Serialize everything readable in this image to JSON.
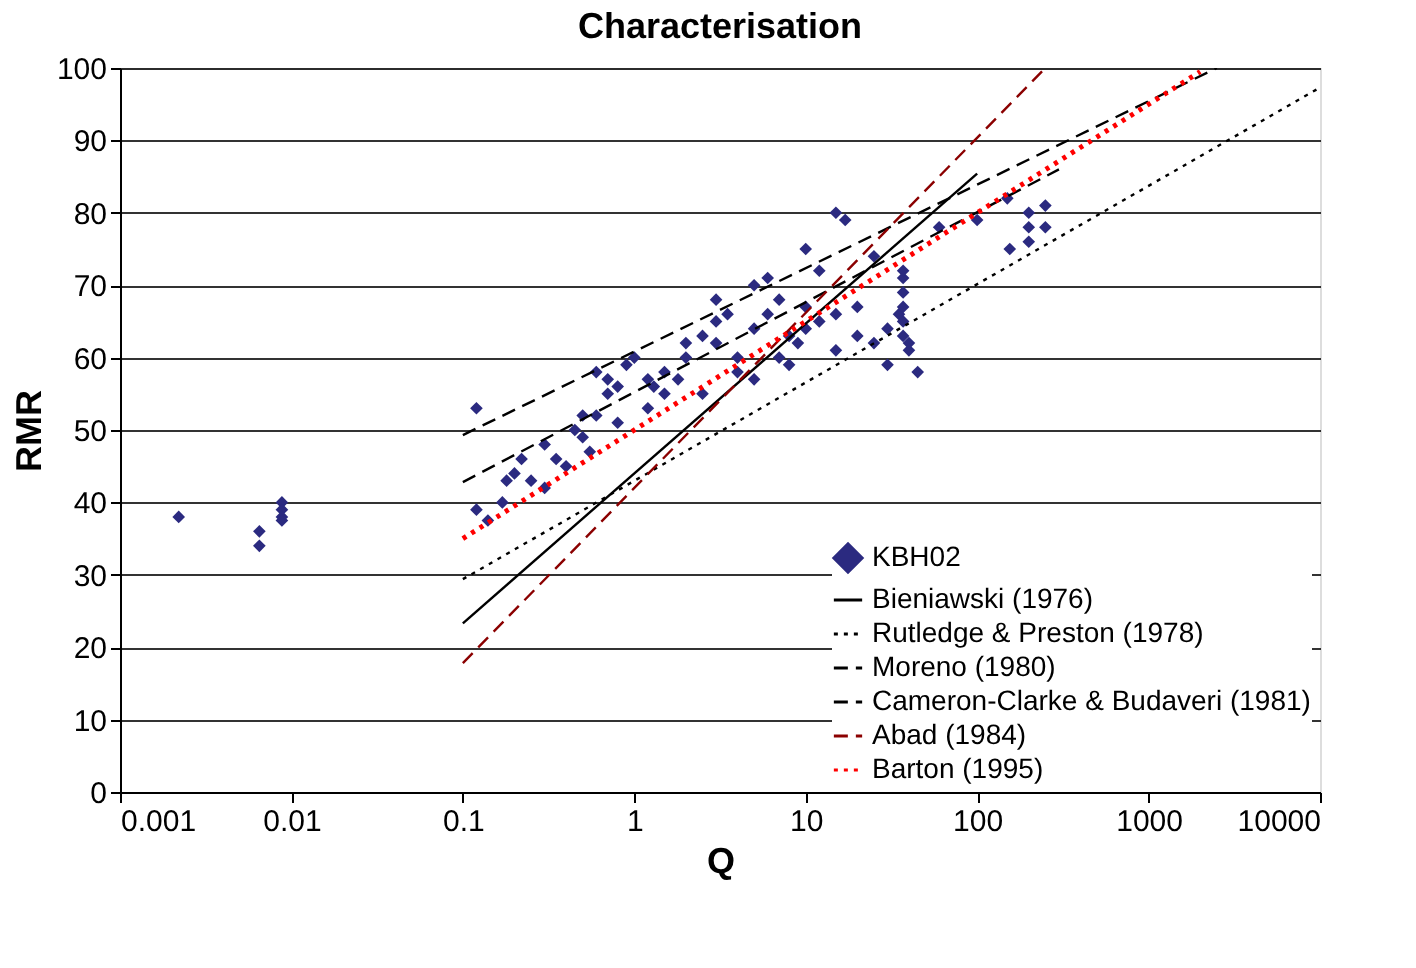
{
  "chart_data": {
    "type": "scatter",
    "title": "Characterisation",
    "xlabel": "Q",
    "ylabel": "RMR",
    "log": "x",
    "xlim": [
      0.001,
      10000
    ],
    "xticks": [
      0.001,
      0.01,
      0.1,
      1,
      10,
      100,
      1000,
      10000
    ],
    "ylim": [
      0,
      100
    ],
    "yticks": [
      0,
      10,
      20,
      30,
      40,
      50,
      60,
      70,
      80,
      90,
      100
    ],
    "grid": "y",
    "legend": "bottom right",
    "series": [
      {
        "name": "KBH02",
        "type": "scatter",
        "marker": "diamond",
        "color": "#2b2a80",
        "x": [
          0.0022,
          0.0065,
          0.0065,
          0.0088,
          0.0088,
          0.0088,
          0.0088,
          0.12,
          0.12,
          0.14,
          0.17,
          0.18,
          0.2,
          0.22,
          0.25,
          0.3,
          0.3,
          0.35,
          0.4,
          0.45,
          0.5,
          0.5,
          0.55,
          0.6,
          0.6,
          0.7,
          0.7,
          0.8,
          0.8,
          0.9,
          1,
          1.2,
          1.2,
          1.3,
          1.5,
          1.5,
          1.8,
          2,
          2,
          2.5,
          2.5,
          3,
          3,
          3,
          3.5,
          4,
          4,
          5,
          5,
          5,
          6,
          6,
          7,
          7,
          8,
          8,
          9,
          10,
          10,
          10,
          12,
          12,
          15,
          15,
          15,
          17,
          20,
          20,
          25,
          25,
          30,
          30,
          35,
          37,
          37,
          37,
          37,
          37,
          37,
          40,
          40,
          45,
          60,
          100,
          150,
          155,
          200,
          200,
          200,
          250,
          250
        ],
        "values": [
          38,
          36,
          34,
          40,
          39,
          38,
          37.5,
          53,
          39,
          37.5,
          40,
          43,
          44,
          46,
          43,
          48,
          42,
          46,
          45,
          50,
          49,
          52,
          47,
          52,
          58,
          55,
          57,
          56,
          51,
          59,
          60,
          57,
          53,
          56,
          55,
          58,
          57,
          60,
          62,
          63,
          55,
          62,
          65,
          68,
          66,
          60,
          58,
          64,
          70,
          57,
          66,
          71,
          68,
          60,
          63,
          59,
          62,
          64,
          67,
          75,
          65,
          72,
          61,
          66,
          80,
          79,
          63,
          67,
          62,
          74,
          64,
          59,
          66,
          63,
          65,
          67,
          69,
          71,
          72,
          61,
          62,
          58,
          78,
          79,
          82,
          75,
          76,
          78,
          80,
          81,
          78
        ]
      },
      {
        "name": "Bieniawski (1976)",
        "type": "line",
        "line_style": "solid",
        "color": "#000000",
        "x": [
          0.1,
          100
        ],
        "values": [
          23.3,
          85.4
        ]
      },
      {
        "name": "Rutledge & Preston (1978)",
        "type": "line",
        "line_style": "dotted",
        "color": "#000000",
        "x": [
          0.1,
          10000
        ],
        "values": [
          29.4,
          97.3
        ]
      },
      {
        "name": "Moreno (1980)",
        "type": "line",
        "line_style": "dashed",
        "color": "#000000",
        "x": [
          0.1,
          300
        ],
        "values": [
          42.8,
          86
        ]
      },
      {
        "name": "Cameron-Clarke & Budaveri (1981)",
        "type": "line",
        "line_style": "dashed",
        "color": "#000000",
        "x": [
          0.1,
          2500
        ],
        "values": [
          49.3,
          100
        ]
      },
      {
        "name": "Abad (1984)",
        "type": "line",
        "line_style": "dashed",
        "color": "#8b0000",
        "x": [
          0.1,
          250
        ],
        "values": [
          17.8,
          100
        ]
      },
      {
        "name": "Barton (1995)",
        "type": "line",
        "line_style": "dotted",
        "color": "#ff0000",
        "x": [
          0.1,
          2000
        ],
        "values": [
          35,
          99.5
        ]
      }
    ]
  }
}
